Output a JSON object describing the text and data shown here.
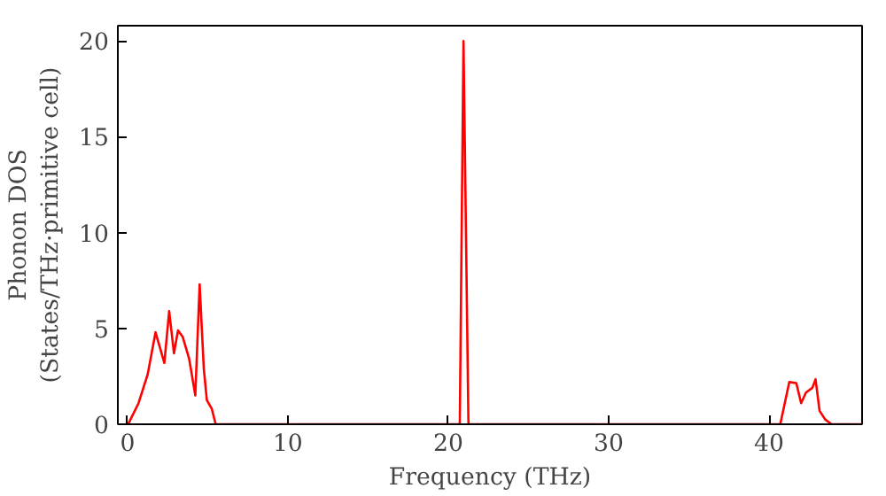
{
  "chart_data": {
    "type": "line",
    "xlabel": "Frequency (THz)",
    "ylabel": "Phonon DOS\n(States/THz·primitive cell)",
    "xlim": [
      -0.6,
      45.8
    ],
    "ylim": [
      0,
      20.8
    ],
    "xticks": [
      0,
      10,
      20,
      30,
      40
    ],
    "yticks": [
      0,
      5,
      10,
      15,
      20
    ],
    "grid": false,
    "series": [
      {
        "color": "#ff0000",
        "x": [
          0,
          0.1,
          0.69,
          1.26,
          1.75,
          2.3,
          2.6,
          2.9,
          3.15,
          3.45,
          3.85,
          4.23,
          4.5,
          4.76,
          4.95,
          5.26,
          5.5,
          10,
          15,
          20.72,
          20.95,
          21.26,
          25,
          30,
          35,
          40.7,
          41.26,
          41.7,
          42.0,
          42.3,
          42.7,
          42.9,
          43.15,
          43.5,
          43.9,
          45.8
        ],
        "values": [
          0,
          0.1,
          1.1,
          2.6,
          4.8,
          3.2,
          5.9,
          3.7,
          4.9,
          4.55,
          3.4,
          1.5,
          7.3,
          2.9,
          1.25,
          0.8,
          0,
          0,
          0,
          0,
          20,
          0,
          0,
          0,
          0,
          0,
          2.2,
          2.15,
          1.1,
          1.65,
          1.9,
          2.35,
          0.7,
          0.25,
          0,
          0
        ]
      }
    ]
  }
}
